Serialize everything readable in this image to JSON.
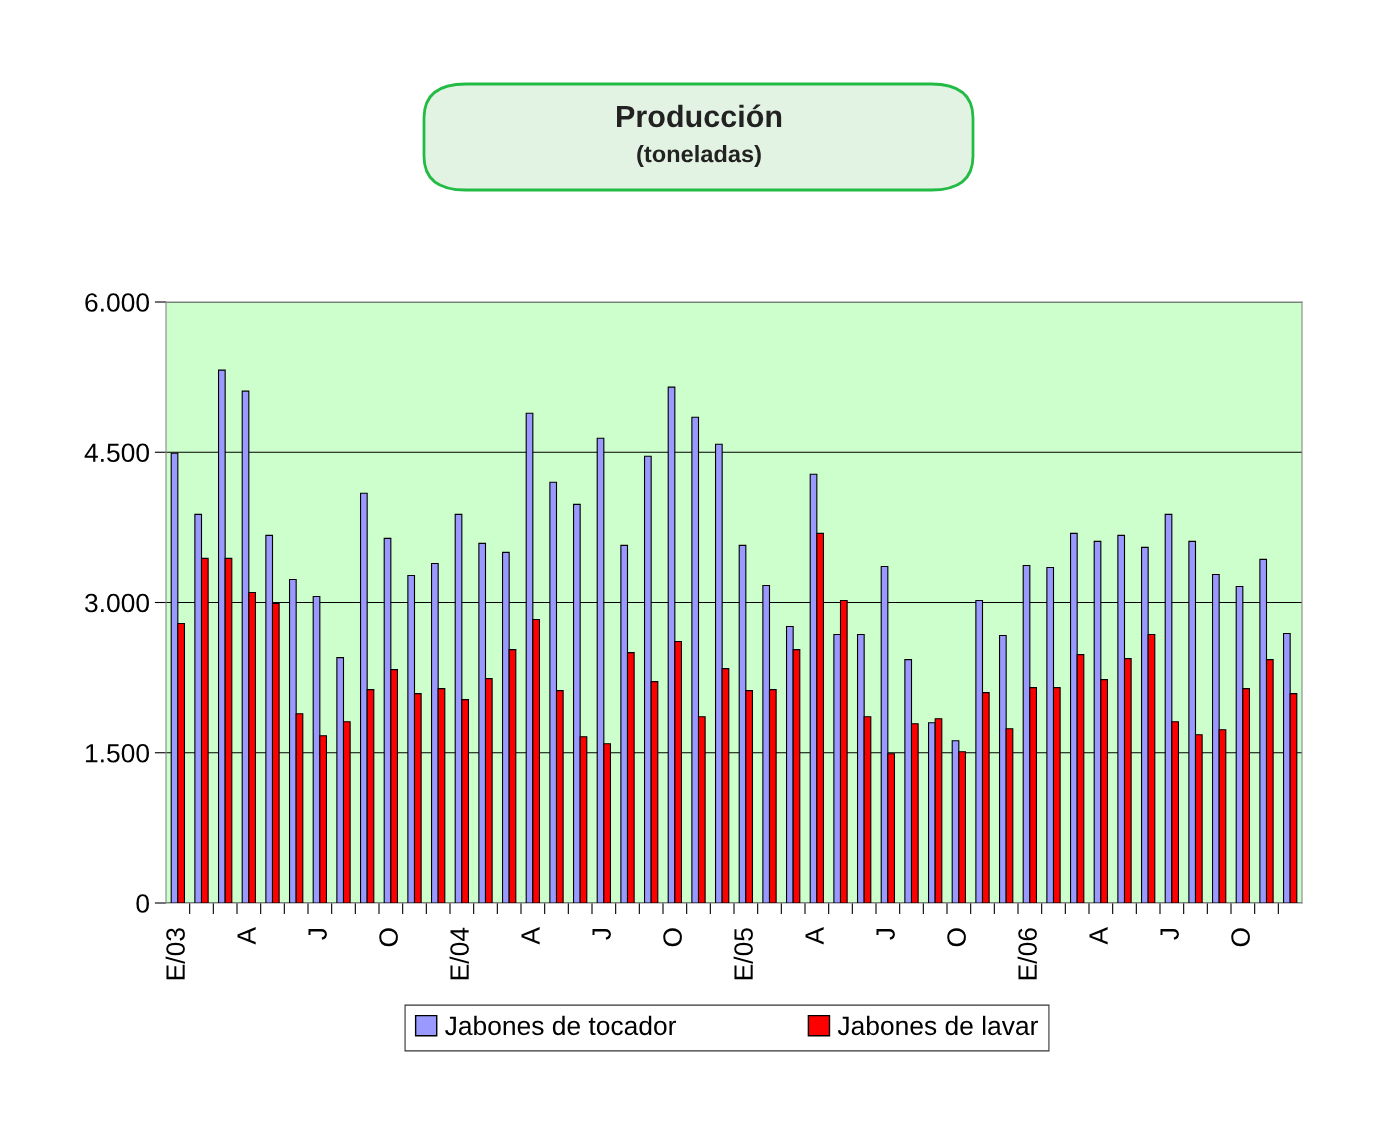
{
  "chart_data": {
    "type": "bar",
    "title": "Producción",
    "subtitle": "(toneladas)",
    "categories": [
      "E/03",
      null,
      null,
      "A",
      null,
      null,
      "J",
      null,
      null,
      "O",
      null,
      null,
      "E/04",
      null,
      null,
      "A",
      null,
      null,
      "J",
      null,
      null,
      "O",
      null,
      null,
      "E/05",
      null,
      null,
      "A",
      null,
      null,
      "J",
      null,
      null,
      "O",
      null,
      null,
      "E/06",
      null,
      null,
      "A",
      null,
      null,
      "J",
      null,
      null,
      "O",
      null,
      null
    ],
    "series": [
      {
        "name": "Jabones de tocador",
        "color": "#9999ff",
        "values": [
          4490,
          3880,
          5320,
          5110,
          3670,
          3230,
          3060,
          2450,
          4090,
          3640,
          3270,
          3390,
          3880,
          3590,
          3500,
          4890,
          4200,
          3980,
          4640,
          3570,
          4460,
          5150,
          4850,
          4580,
          3570,
          3170,
          2760,
          4280,
          2680,
          2680,
          3360,
          2430,
          1800,
          1620,
          3020,
          2670,
          3370,
          3350,
          3690,
          3610,
          3670,
          3550,
          3880,
          3610,
          3280,
          3160,
          3430,
          2690
        ]
      },
      {
        "name": "Jabones de lavar",
        "color": "#ff0000",
        "values": [
          2790,
          3440,
          3440,
          3100,
          2990,
          1890,
          1670,
          1810,
          2130,
          2330,
          2090,
          2140,
          2030,
          2240,
          2530,
          2830,
          2120,
          1660,
          1590,
          2500,
          2210,
          2610,
          1860,
          2340,
          2120,
          2130,
          2530,
          3690,
          3020,
          1860,
          1490,
          1790,
          1840,
          1510,
          2100,
          1740,
          2150,
          2150,
          2480,
          2230,
          2440,
          2680,
          1810,
          1680,
          1730,
          2140,
          2430,
          2090
        ]
      }
    ],
    "ylim": [
      0,
      6000
    ],
    "yticks": [
      0,
      {
        "value": 1500,
        "label": "1.500"
      },
      {
        "value": 3000,
        "label": "3.000"
      },
      {
        "value": 4500,
        "label": "4.500"
      },
      {
        "value": 6000,
        "label": "6.000"
      }
    ],
    "grid": "y",
    "legend": "bottom"
  }
}
